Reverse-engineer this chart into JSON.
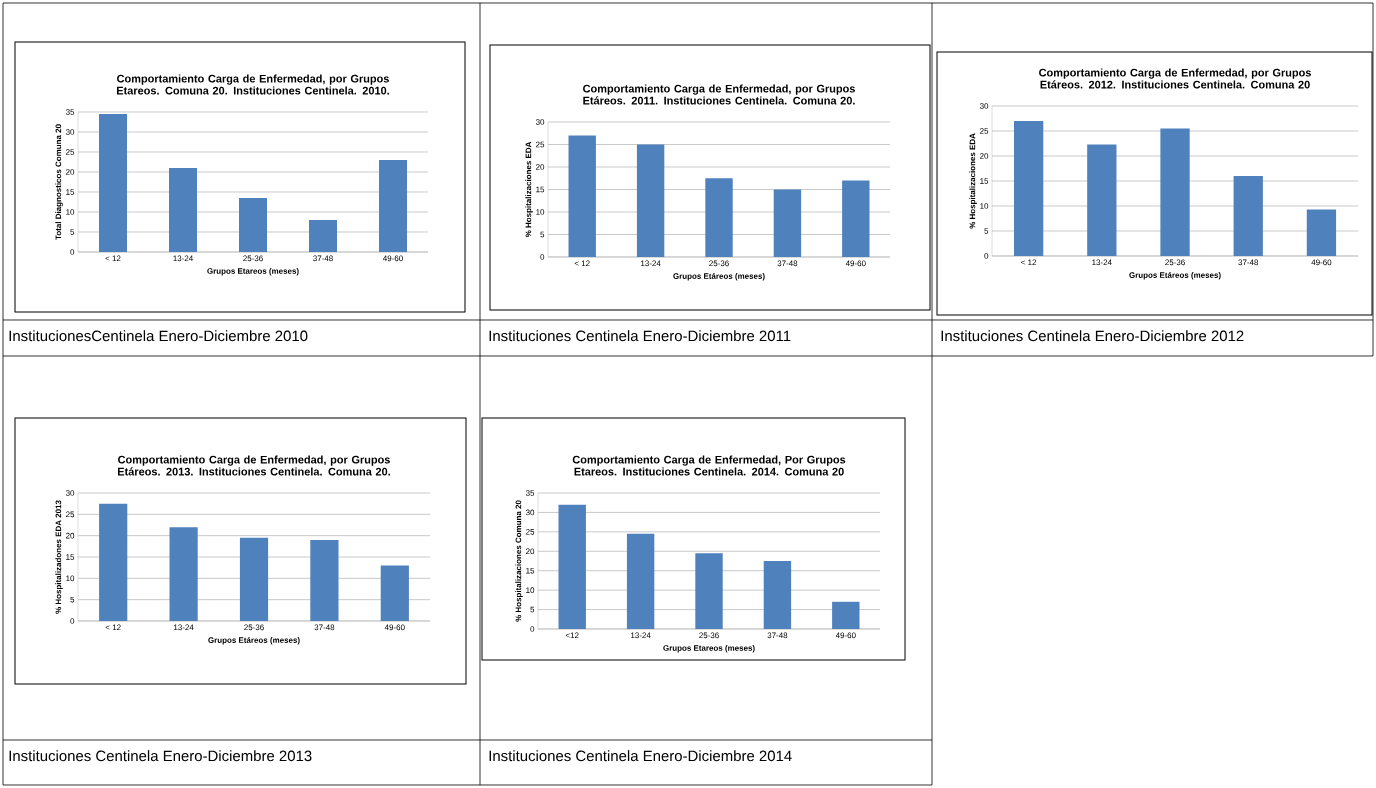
{
  "chart_data": [
    {
      "type": "bar",
      "title": "Comportamiento Carga de Enfermedad, por Grupos Etareos. Comuna 20. Instituciones Centinela. 2010.",
      "xlabel": "Grupos Etareos (meses)",
      "ylabel": "Total Diagnosticos Comuna 20",
      "categories": [
        "< 12",
        "13-24",
        "25-36",
        "37-48",
        "49-60"
      ],
      "values": [
        34.5,
        21,
        13.5,
        8,
        23
      ],
      "color": "#4f81bd",
      "ylim": [
        0,
        35
      ],
      "yticks": [
        0,
        5,
        10,
        15,
        20,
        25,
        30,
        35
      ],
      "grid": "y",
      "annotations": [
        "InstitucionesCentinela Enero-Diciembre 2010"
      ]
    },
    {
      "type": "bar",
      "title": "Comportamiento Carga de Enfermedad, por Grupos Etáreos. 2011. Instituciones Centinela. Comuna 20.",
      "xlabel": "Grupos Etáreos (meses)",
      "ylabel": "% Hospitalizaciones EDA",
      "categories": [
        "< 12",
        "13-24",
        "25-36",
        "37-48",
        "49-60"
      ],
      "values": [
        27,
        25,
        17.5,
        15,
        17
      ],
      "color": "#4f81bd",
      "ylim": [
        0,
        30
      ],
      "yticks": [
        0,
        5,
        10,
        15,
        20,
        25,
        30
      ],
      "grid": "y",
      "annotations": [
        "Instituciones Centinela Enero-Diciembre 2011"
      ]
    },
    {
      "type": "bar",
      "title": "Comportamiento Carga de Enfermedad, por Grupos Etáreos. 2012. Instituciones Centinela. Comuna 20",
      "xlabel": "Grupos Etáreos (meses)",
      "ylabel": "% Hospitalizaciones EDA",
      "categories": [
        "< 12",
        "13-24",
        "25-36",
        "37-48",
        "49-60"
      ],
      "values": [
        27,
        22.3,
        25.5,
        16,
        9.3
      ],
      "color": "#4f81bd",
      "ylim": [
        0,
        30
      ],
      "yticks": [
        0,
        5,
        10,
        15,
        20,
        25,
        30
      ],
      "grid": "y",
      "annotations": [
        "Instituciones Centinela Enero-Diciembre 2012"
      ]
    },
    {
      "type": "bar",
      "title": "Comportamiento Carga de Enfermedad, por Grupos Etáreos. 2013. Instituciones Centinela. Comuna 20.",
      "xlabel": "Grupos Etáreos (meses)",
      "ylabel": "% Hospitalizadones EDA 2013",
      "categories": [
        "< 12",
        "13-24",
        "25-36",
        "37-48",
        "49-60"
      ],
      "values": [
        27.5,
        22,
        19.5,
        19,
        13
      ],
      "color": "#4f81bd",
      "ylim": [
        0,
        30
      ],
      "yticks": [
        0,
        5,
        10,
        15,
        20,
        25,
        30
      ],
      "grid": "y",
      "annotations": [
        "Instituciones Centinela Enero-Diciembre 2013"
      ]
    },
    {
      "type": "bar",
      "title": "Comportamiento Carga de Enfermedad, Por Grupos Etareos. Instituciones Centinela. 2014. Comuna 20",
      "xlabel": "Grupos Etareos (meses)",
      "ylabel": "% Hospitalizaciones Comuna 20",
      "categories": [
        "<12",
        "13-24",
        "25-36",
        "37-48",
        "49-60"
      ],
      "values": [
        32,
        24.5,
        19.5,
        17.5,
        7
      ],
      "color": "#4f81bd",
      "ylim": [
        0,
        35
      ],
      "yticks": [
        0,
        5,
        10,
        15,
        20,
        25,
        30,
        35
      ],
      "grid": "y",
      "annotations": [
        "Instituciones Centinela Enero-Diciembre 2014"
      ]
    }
  ]
}
